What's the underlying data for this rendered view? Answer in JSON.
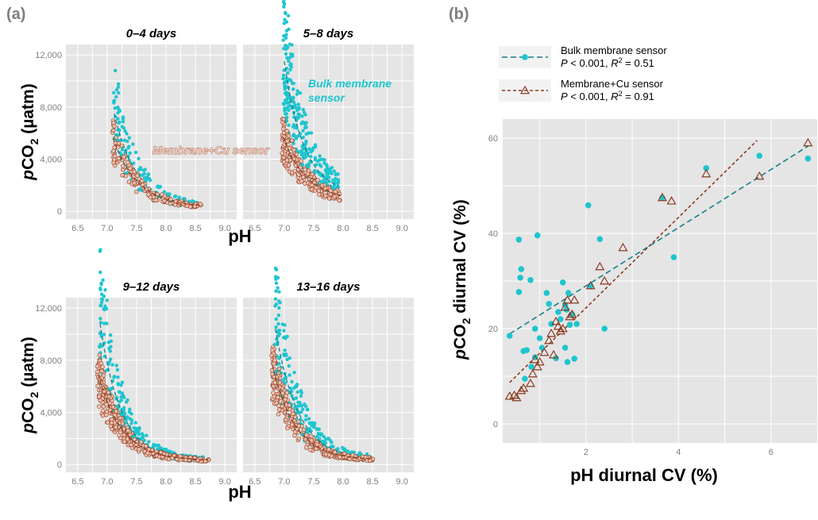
{
  "panel_a_label": "(a)",
  "panel_b_label": "(b)",
  "colors": {
    "bulk": "#1ec5cf",
    "cu": "#8b3a1f",
    "cu_fill": "#f3c3b0",
    "panel": "#e5e5e5"
  },
  "chart_data": [
    {
      "type": "scatter",
      "panel": "a",
      "facets": [
        "0–4 days",
        "5–8 days",
        "9–12 days",
        "13–16 days"
      ],
      "xlabel": "pH",
      "ylabel_main": "pCO",
      "ylabel_sub": "2",
      "ylabel_unit": " (µatm)",
      "xlim": [
        6.3,
        9.2
      ],
      "ylim": [
        -600,
        12800
      ],
      "xticks": [
        6.5,
        7.0,
        7.5,
        8.0,
        8.5,
        9.0
      ],
      "xtick_labels": [
        "6.5",
        "7.0",
        "7.5",
        "8.0",
        "8.5",
        "9.0"
      ],
      "yticks": [
        0,
        4000,
        8000,
        12000
      ],
      "ytick_labels": [
        "0",
        "4,000",
        "8,000",
        "12,000"
      ],
      "ygrid_minor": [
        2000,
        6000,
        10000
      ],
      "xgrid_minor": [
        6.75,
        7.25,
        7.75,
        8.25,
        8.75
      ],
      "annotations": [
        {
          "facet": 1,
          "text": "Bulk membrane",
          "color": "bulk"
        },
        {
          "facet": 1,
          "text": "sensor",
          "color": "bulk"
        },
        {
          "facet": 0,
          "text": "Membrane+Cu sensor",
          "color": "cu"
        }
      ],
      "series": [
        {
          "name": "Bulk membrane sensor",
          "clouds": [
            {
              "phmin": 7.12,
              "phmax": 8.55,
              "top": 7500,
              "k": 2.6,
              "base": 300,
              "n": 160
            },
            {
              "phmin": 7.0,
              "phmax": 7.92,
              "top": 11500,
              "k": 3.0,
              "base": 1300,
              "n": 300
            },
            {
              "phmin": 6.88,
              "phmax": 8.62,
              "top": 10800,
              "k": 2.8,
              "base": 300,
              "n": 330
            },
            {
              "phmin": 6.85,
              "phmax": 8.45,
              "top": 10400,
              "k": 2.6,
              "base": 350,
              "n": 280
            }
          ]
        },
        {
          "name": "Membrane+Cu sensor",
          "clouds": [
            {
              "phmin": 7.1,
              "phmax": 8.6,
              "top": 5600,
              "k": 2.4,
              "base": 300,
              "n": 140
            },
            {
              "phmin": 6.98,
              "phmax": 7.95,
              "top": 5700,
              "k": 2.5,
              "base": 800,
              "n": 200
            },
            {
              "phmin": 6.85,
              "phmax": 8.72,
              "top": 6900,
              "k": 2.5,
              "base": 300,
              "n": 320
            },
            {
              "phmin": 6.8,
              "phmax": 8.5,
              "top": 7600,
              "k": 2.6,
              "base": 350,
              "n": 300
            }
          ]
        }
      ]
    },
    {
      "type": "scatter",
      "panel": "b",
      "xlabel": "pH diurnal CV (%)",
      "ylabel_main": "pCO",
      "ylabel_sub": "2",
      "ylabel_unit": " diurnal CV (%)",
      "xlim": [
        0.2,
        7.0
      ],
      "ylim": [
        -4,
        64
      ],
      "xticks": [
        2,
        4,
        6
      ],
      "xtick_labels": [
        "2",
        "4",
        "6"
      ],
      "yticks": [
        0,
        20,
        40,
        60
      ],
      "ytick_labels": [
        "0",
        "20",
        "40",
        "60"
      ],
      "xgrid_minor": [
        1,
        3,
        5
      ],
      "ygrid_minor": [
        10,
        30,
        50
      ],
      "legend": {
        "placement": "top"
      },
      "series": [
        {
          "name": "Bulk membrane sensor",
          "stat_prefix": "P",
          "stat_rest": " < 0.001, ",
          "stat_r": "R",
          "stat_sup": "2",
          "stat_val": " = 0.51",
          "x": [
            0.35,
            0.55,
            0.6,
            0.58,
            0.55,
            0.65,
            0.8,
            0.9,
            0.95,
            1.0,
            0.68,
            0.72,
            0.82,
            0.9,
            1.05,
            1.15,
            1.2,
            1.25,
            1.35,
            1.4,
            1.45,
            1.5,
            1.55,
            1.6,
            1.62,
            1.65,
            1.7,
            1.75,
            1.8,
            1.55,
            1.58,
            2.05,
            2.1,
            2.3,
            2.4,
            3.65,
            3.9,
            4.6,
            5.75,
            6.8
          ],
          "y": [
            18.5,
            38.7,
            32.5,
            30.7,
            27.7,
            15.3,
            30.2,
            20.0,
            39.6,
            18.0,
            9.5,
            15.5,
            12.0,
            14.0,
            16.0,
            27.5,
            25.2,
            21.0,
            13.8,
            23.5,
            22.0,
            29.7,
            16.0,
            13.0,
            27.5,
            20.8,
            23.0,
            13.7,
            21.0,
            25.0,
            24.0,
            45.9,
            29.0,
            38.8,
            20.0,
            47.5,
            35.0,
            53.7,
            56.3,
            55.7
          ]
        },
        {
          "name": "Membrane+Cu sensor",
          "stat_prefix": "P",
          "stat_rest": " < 0.001, ",
          "stat_r": "R",
          "stat_sup": "2",
          "stat_val": " = 0.91",
          "x": [
            0.35,
            0.45,
            0.5,
            0.6,
            0.65,
            0.8,
            0.85,
            0.9,
            0.95,
            1.0,
            1.1,
            1.2,
            1.25,
            1.3,
            1.35,
            1.4,
            1.45,
            1.5,
            1.55,
            1.6,
            1.65,
            1.7,
            1.75,
            2.1,
            2.3,
            2.4,
            2.8,
            3.65,
            3.85,
            4.6,
            5.75,
            6.8
          ],
          "y": [
            5.8,
            6.0,
            5.5,
            7.0,
            7.5,
            8.5,
            10.5,
            13.5,
            12.0,
            13.0,
            15.0,
            17.5,
            19.0,
            14.5,
            21.5,
            20.5,
            19.5,
            20.0,
            24.5,
            26.0,
            22.5,
            23.0,
            26.0,
            29.0,
            33.0,
            30.0,
            37.0,
            47.5,
            46.8,
            52.5,
            52.0,
            59.0
          ]
        }
      ],
      "fit_lines": [
        {
          "series": "Bulk membrane sensor",
          "x": [
            0.35,
            6.8
          ],
          "y": [
            18.9,
            58.3
          ]
        },
        {
          "series": "Membrane+Cu sensor",
          "x": [
            0.35,
            5.7
          ],
          "y": [
            8.7,
            59.5
          ]
        }
      ]
    }
  ]
}
